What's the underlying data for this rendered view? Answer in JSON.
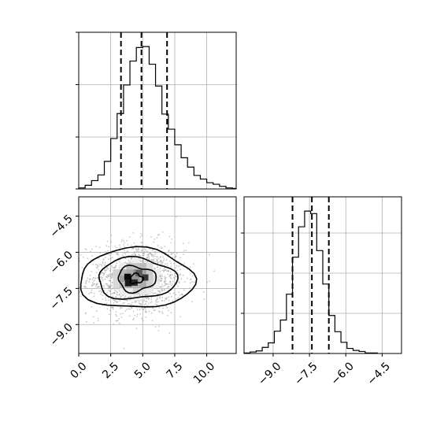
{
  "chart_data": {
    "type": "corner",
    "grid": true,
    "quantile_line_style": "dashed",
    "x": {
      "xlim": [
        0,
        12.3
      ],
      "ticks": [
        0,
        2.5,
        5,
        7.5,
        10
      ],
      "tick_labels": [
        "0.0",
        "2.5",
        "5.0",
        "7.5",
        "10.0"
      ],
      "quantiles": [
        3.3,
        4.9,
        6.9
      ],
      "histogram": {
        "bin_edges": [
          0,
          0.5,
          1,
          1.5,
          2,
          2.5,
          3,
          3.5,
          4,
          4.5,
          5,
          5.5,
          6,
          6.5,
          7,
          7.5,
          8,
          8.5,
          9,
          9.5,
          10,
          10.5,
          11,
          11.5,
          12,
          12.3
        ],
        "counts": [
          2,
          7,
          16,
          27,
          53,
          97,
          145,
          200,
          246,
          272,
          274,
          240,
          198,
          144,
          115,
          85,
          60,
          42,
          26,
          19,
          12,
          9,
          5,
          2,
          1
        ]
      }
    },
    "y": {
      "ylim": [
        -10.2,
        -3.7
      ],
      "ticks": [
        -4.5,
        -6.0,
        -7.5,
        -9.0
      ],
      "tick_labels": [
        "−4.5",
        "−6.0",
        "−7.5",
        "−9.0"
      ],
      "quantiles": [
        -8.2,
        -7.4,
        -6.7
      ],
      "histogram": {
        "bin_edges": [
          -10.2,
          -9.95,
          -9.7,
          -9.45,
          -9.2,
          -8.95,
          -8.7,
          -8.45,
          -8.2,
          -7.95,
          -7.7,
          -7.45,
          -7.2,
          -6.95,
          -6.7,
          -6.45,
          -6.2,
          -5.95,
          -5.7,
          -5.45,
          -5.2,
          -4.95,
          -4.7
        ],
        "counts": [
          1,
          3,
          5,
          12,
          21,
          44,
          66,
          117,
          190,
          250,
          281,
          276,
          203,
          137,
          75,
          43,
          22,
          10,
          6,
          4,
          1,
          1
        ]
      }
    },
    "joint": {
      "type": "2d-histogram-contour",
      "center": [
        4.5,
        -7.1
      ],
      "spread": [
        1.9,
        0.75
      ],
      "contour_levels": 3
    }
  }
}
